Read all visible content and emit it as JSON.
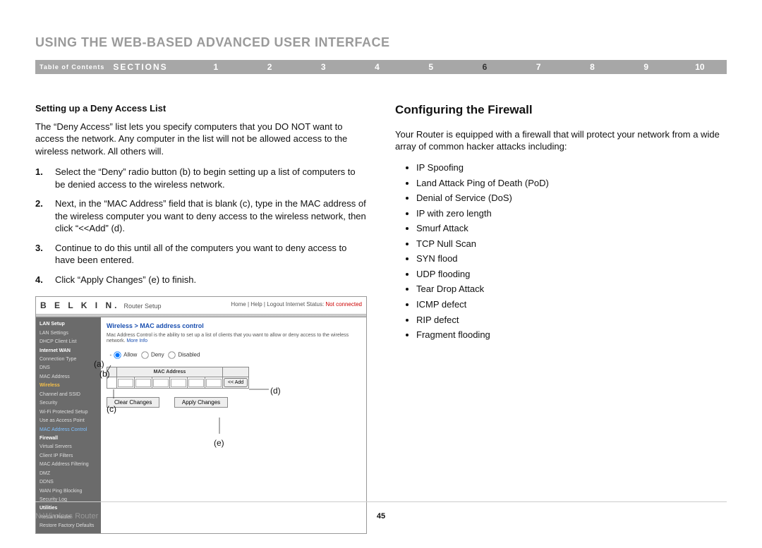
{
  "page_title": "USING THE WEB-BASED ADVANCED USER INTERFACE",
  "nav": {
    "toc_label": "Table of Contents",
    "sections_label": "SECTIONS",
    "numbers": [
      "1",
      "2",
      "3",
      "4",
      "5",
      "6",
      "7",
      "8",
      "9",
      "10"
    ],
    "active_index": 5,
    "bar_bg": "#a7a7a7",
    "text_color": "#ffffff",
    "active_color": "#333333"
  },
  "left": {
    "subheading": "Setting up a Deny Access List",
    "intro": "The “Deny Access” list lets you specify computers that you DO NOT want to access the network. Any computer in the list will not be allowed access to the wireless network. All others will.",
    "steps": [
      "Select the “Deny” radio button (b) to begin setting up a list of computers to be denied access to the wireless network.",
      "Next, in the “MAC Address” field that is blank (c), type in the MAC address of the wireless computer you want to deny access to the wireless network, then click “<<Add” (d).",
      "Continue to do this until all of the computers you want to deny access to have been entered.",
      "Click “Apply Changes” (e) to finish."
    ]
  },
  "right": {
    "heading": "Configuring the Firewall",
    "intro": "Your Router is equipped with a firewall that will protect your network from a wide array of common hacker attacks including:",
    "attacks": [
      "IP Spoofing",
      "Land Attack Ping of Death (PoD)",
      "Denial of Service (DoS)",
      "IP with zero length",
      "Smurf Attack",
      "TCP Null Scan",
      "SYN flood",
      "UDP flooding",
      "Tear Drop Attack",
      "ICMP defect",
      "RIP defect",
      "Fragment flooding"
    ]
  },
  "router_ui": {
    "brand": "B E L K I N.",
    "brand_sub": "Router Setup",
    "top_links": "Home | Help | Logout   Internet Status:",
    "status_value": "Not connected",
    "breadcrumb": "Wireless > MAC address control",
    "desc_text": "Mac Address Control is the ability to set up a list of clients that you want to allow or deny access to the wireless network.",
    "desc_link": "More Info",
    "radios": {
      "allow": "Allow",
      "deny": "Deny",
      "disabled": "Disabled"
    },
    "mac_header": "MAC Address",
    "add_btn": "<< Add",
    "clear_btn": "Clear Changes",
    "apply_btn": "Apply Changes",
    "sidebar": [
      {
        "t": "LAN Setup",
        "c": "hd"
      },
      {
        "t": "LAN Settings",
        "c": ""
      },
      {
        "t": "DHCP Client List",
        "c": ""
      },
      {
        "t": "Internet WAN",
        "c": "hd"
      },
      {
        "t": "Connection Type",
        "c": ""
      },
      {
        "t": "DNS",
        "c": ""
      },
      {
        "t": "MAC Address",
        "c": ""
      },
      {
        "t": "Wireless",
        "c": "yl"
      },
      {
        "t": "Channel and SSID",
        "c": ""
      },
      {
        "t": "Security",
        "c": ""
      },
      {
        "t": "Wi-Fi Protected Setup",
        "c": ""
      },
      {
        "t": "Use as Access Point",
        "c": ""
      },
      {
        "t": "MAC Address Control",
        "c": "hl"
      },
      {
        "t": "Firewall",
        "c": "hd"
      },
      {
        "t": "Virtual Servers",
        "c": ""
      },
      {
        "t": "Client IP Filters",
        "c": ""
      },
      {
        "t": "MAC Address Filtering",
        "c": ""
      },
      {
        "t": "DMZ",
        "c": ""
      },
      {
        "t": "DDNS",
        "c": ""
      },
      {
        "t": "WAN Ping Blocking",
        "c": ""
      },
      {
        "t": "Security Log",
        "c": ""
      },
      {
        "t": "Utilities",
        "c": "hd"
      },
      {
        "t": "Restart Router",
        "c": ""
      },
      {
        "t": "Restore Factory Defaults",
        "c": ""
      }
    ],
    "annotations": {
      "a": "(a)",
      "b": "(b)",
      "c": "(c)",
      "d": "(d)",
      "e": "(e)"
    }
  },
  "footer": {
    "product": "N Wireless Router",
    "page_number": "45"
  },
  "colors": {
    "title_gray": "#9a9a9a",
    "text": "#111111",
    "link_blue": "#1a4fb0",
    "sidebar_bg": "#6b6b6b"
  }
}
